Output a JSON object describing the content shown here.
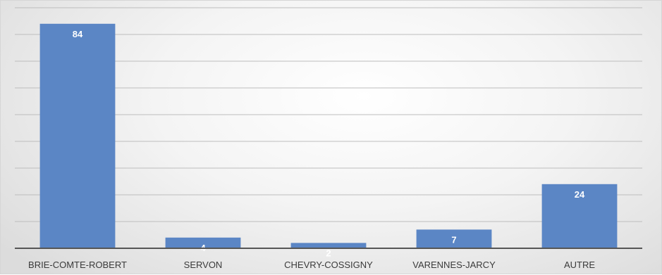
{
  "chart_data": {
    "type": "bar",
    "categories": [
      "BRIE-COMTE-ROBERT",
      "SERVON",
      "CHEVRY-COSSIGNY",
      "VARENNES-JARCY",
      "AUTRE"
    ],
    "values": [
      84,
      4,
      2,
      7,
      24
    ],
    "title": "",
    "xlabel": "",
    "ylabel": "",
    "ylim": [
      0,
      90
    ],
    "grid": true,
    "legend": "none",
    "colors": {
      "bar": "#5b86c5",
      "label": "#ffffff",
      "grid": "#bdbdbd",
      "axis": "#555555"
    }
  }
}
